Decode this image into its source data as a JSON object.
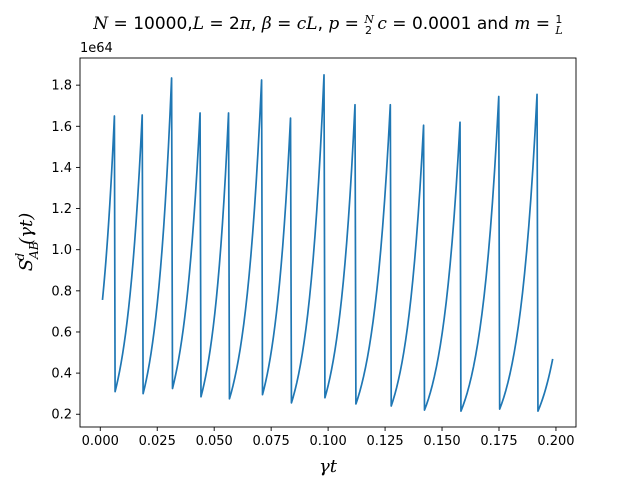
{
  "chart_data": {
    "type": "line",
    "title": "N = 10000, L = 2π, β = cL, p = N/2  c = 0.0001 and m = 1/L",
    "xlabel": "γt",
    "ylabel": "S^d_AB(γt)",
    "y_offset_label": "1e64",
    "xlim": [
      -0.0089,
      0.2088
    ],
    "ylim": [
      0.138,
      1.932
    ],
    "x_ticks": [
      0.0,
      0.025,
      0.05,
      0.075,
      0.1,
      0.125,
      0.15,
      0.175,
      0.2
    ],
    "x_tick_labels": [
      "0.000",
      "0.025",
      "0.050",
      "0.075",
      "0.100",
      "0.125",
      "0.150",
      "0.175",
      "0.200"
    ],
    "y_ticks": [
      0.2,
      0.4,
      0.6,
      0.8,
      1.0,
      1.2,
      1.4,
      1.6,
      1.8
    ],
    "y_tick_labels": [
      "0.2",
      "0.4",
      "0.6",
      "0.8",
      "1.0",
      "1.2",
      "1.4",
      "1.6",
      "1.8"
    ],
    "grid": false,
    "line_color": "#1f77b4",
    "series": [
      {
        "name": "",
        "x": [
          0.001,
          0.0062,
          0.0065,
          0.0184,
          0.0188,
          0.0313,
          0.0317,
          0.0438,
          0.0442,
          0.0563,
          0.0567,
          0.0708,
          0.0712,
          0.0835,
          0.0839,
          0.0982,
          0.0986,
          0.1118,
          0.1122,
          0.1273,
          0.1277,
          0.1419,
          0.1423,
          0.1579,
          0.1583,
          0.1749,
          0.1753,
          0.1917,
          0.1921,
          0.1985
        ],
        "y": [
          0.76,
          1.65,
          0.31,
          1.655,
          0.3,
          1.835,
          0.325,
          1.665,
          0.285,
          1.665,
          0.275,
          1.825,
          0.295,
          1.64,
          0.255,
          1.85,
          0.28,
          1.705,
          0.25,
          1.705,
          0.24,
          1.605,
          0.22,
          1.62,
          0.215,
          1.745,
          0.225,
          1.755,
          0.215,
          0.465
        ]
      }
    ]
  }
}
